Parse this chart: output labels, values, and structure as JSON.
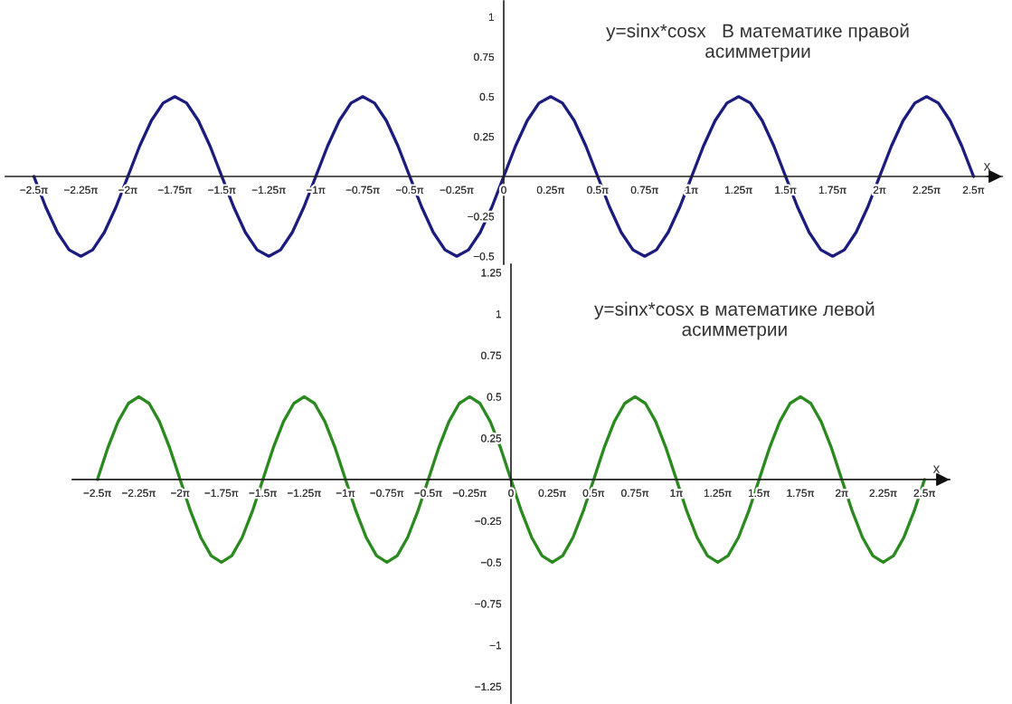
{
  "chart_data": [
    {
      "type": "line",
      "title": "y=sinx*cosx   В математике правой\nасимметрии",
      "xlabel": "x",
      "x": [
        -7.854,
        -7.658,
        -7.461,
        -7.265,
        -7.069,
        -6.872,
        -6.676,
        -6.48,
        -6.283,
        -6.087,
        -5.89,
        -5.694,
        -5.498,
        -5.301,
        -5.105,
        -4.909,
        -4.712,
        -4.516,
        -4.32,
        -4.123,
        -3.927,
        -3.731,
        -3.534,
        -3.338,
        -3.142,
        -2.945,
        -2.749,
        -2.553,
        -2.356,
        -2.16,
        -1.963,
        -1.767,
        -1.571,
        -1.374,
        -1.178,
        -0.982,
        -0.785,
        -0.589,
        -0.393,
        -0.196,
        0,
        0.196,
        0.393,
        0.589,
        0.785,
        0.982,
        1.178,
        1.374,
        1.571,
        1.767,
        1.963,
        2.16,
        2.356,
        2.553,
        2.749,
        2.945,
        3.142,
        3.338,
        3.534,
        3.731,
        3.927,
        4.123,
        4.32,
        4.516,
        4.712,
        4.909,
        5.105,
        5.301,
        5.498,
        5.694,
        5.89,
        6.087,
        6.283,
        6.48,
        6.676,
        6.872,
        7.069,
        7.265,
        7.461,
        7.658,
        7.854
      ],
      "series": [
        {
          "color": "#1c1c7e",
          "values": [
            0,
            -0.19,
            -0.35,
            -0.46,
            -0.5,
            -0.46,
            -0.35,
            -0.19,
            0,
            0.19,
            0.35,
            0.46,
            0.5,
            0.46,
            0.35,
            0.19,
            0,
            -0.19,
            -0.35,
            -0.46,
            -0.5,
            -0.46,
            -0.35,
            -0.19,
            0,
            0.19,
            0.35,
            0.46,
            0.5,
            0.46,
            0.35,
            0.19,
            0,
            -0.19,
            -0.35,
            -0.46,
            -0.5,
            -0.46,
            -0.35,
            -0.19,
            0,
            0.19,
            0.35,
            0.46,
            0.5,
            0.46,
            0.35,
            0.19,
            0,
            -0.19,
            -0.35,
            -0.46,
            -0.5,
            -0.46,
            -0.35,
            -0.19,
            0,
            0.19,
            0.35,
            0.46,
            0.5,
            0.46,
            0.35,
            0.19,
            0,
            -0.19,
            -0.35,
            -0.46,
            -0.5,
            -0.46,
            -0.35,
            -0.19,
            0,
            0.19,
            0.35,
            0.46,
            0.5,
            0.46,
            0.35,
            0.19,
            0
          ]
        }
      ],
      "xlim": [
        -8.33,
        8.33
      ],
      "ylim": [
        -0.55,
        1.1
      ],
      "xticks": [
        {
          "value": -7.854,
          "label": "−2.5π"
        },
        {
          "value": -7.069,
          "label": "−2.25π"
        },
        {
          "value": -6.283,
          "label": "−2π"
        },
        {
          "value": -5.498,
          "label": "−1.75π"
        },
        {
          "value": -4.712,
          "label": "−1.5π"
        },
        {
          "value": -3.927,
          "label": "−1.25π"
        },
        {
          "value": -3.142,
          "label": "−1π"
        },
        {
          "value": -2.356,
          "label": "−0.75π"
        },
        {
          "value": -1.571,
          "label": "−0.5π"
        },
        {
          "value": -0.785,
          "label": "−0.25π"
        },
        0,
        {
          "value": 0.785,
          "label": "0.25π"
        },
        {
          "value": 1.571,
          "label": "0.5π"
        },
        {
          "value": 2.356,
          "label": "0.75π"
        },
        {
          "value": 3.142,
          "label": "1π"
        },
        {
          "value": 3.927,
          "label": "1.25π"
        },
        {
          "value": 4.712,
          "label": "1.5π"
        },
        {
          "value": 5.498,
          "label": "1.75π"
        },
        {
          "value": 6.283,
          "label": "2π"
        },
        {
          "value": 7.069,
          "label": "2.25π"
        },
        {
          "value": 7.854,
          "label": "2.5π"
        }
      ],
      "yticks": [
        1,
        0.75,
        0.5,
        0.25,
        {
          "value": -0.25,
          "label": "−0.25"
        },
        {
          "value": -0.5,
          "label": "−0.5"
        }
      ]
    },
    {
      "type": "line",
      "title": "y=sinx*cosx в математике левой\nасимметрии",
      "xlabel": "x",
      "x": [
        -7.854,
        -7.658,
        -7.461,
        -7.265,
        -7.069,
        -6.872,
        -6.676,
        -6.48,
        -6.283,
        -6.087,
        -5.89,
        -5.694,
        -5.498,
        -5.301,
        -5.105,
        -4.909,
        -4.712,
        -4.516,
        -4.32,
        -4.123,
        -3.927,
        -3.731,
        -3.534,
        -3.338,
        -3.142,
        -2.945,
        -2.749,
        -2.553,
        -2.356,
        -2.16,
        -1.963,
        -1.767,
        -1.571,
        -1.374,
        -1.178,
        -0.982,
        -0.785,
        -0.589,
        -0.393,
        -0.196,
        0,
        0.196,
        0.393,
        0.589,
        0.785,
        0.982,
        1.178,
        1.374,
        1.571,
        1.767,
        1.963,
        2.16,
        2.356,
        2.553,
        2.749,
        2.945,
        3.142,
        3.338,
        3.534,
        3.731,
        3.927,
        4.123,
        4.32,
        4.516,
        4.712,
        4.909,
        5.105,
        5.301,
        5.498,
        5.694,
        5.89,
        6.087,
        6.283,
        6.48,
        6.676,
        6.872,
        7.069,
        7.265,
        7.461,
        7.658,
        7.854
      ],
      "series": [
        {
          "color": "#2b8a1f",
          "values": [
            0,
            0.19,
            0.35,
            0.46,
            0.5,
            0.46,
            0.35,
            0.19,
            0,
            -0.19,
            -0.35,
            -0.46,
            -0.5,
            -0.46,
            -0.35,
            -0.19,
            0,
            0.19,
            0.35,
            0.46,
            0.5,
            0.46,
            0.35,
            0.19,
            0,
            -0.19,
            -0.35,
            -0.46,
            -0.5,
            -0.46,
            -0.35,
            -0.19,
            0,
            0.19,
            0.35,
            0.46,
            0.5,
            0.46,
            0.35,
            0.19,
            0,
            -0.19,
            -0.35,
            -0.46,
            -0.5,
            -0.46,
            -0.35,
            -0.19,
            0,
            0.19,
            0.35,
            0.46,
            0.5,
            0.46,
            0.35,
            0.19,
            0,
            -0.19,
            -0.35,
            -0.46,
            -0.5,
            -0.46,
            -0.35,
            -0.19,
            0,
            0.19,
            0.35,
            0.46,
            0.5,
            0.46,
            0.35,
            0.19,
            0,
            -0.19,
            -0.35,
            -0.46,
            -0.5,
            -0.46,
            -0.35,
            -0.19,
            0
          ]
        }
      ],
      "xlim": [
        -8.33,
        8.33
      ],
      "ylim": [
        -1.35,
        1.3
      ],
      "xticks": [
        {
          "value": -7.854,
          "label": "−2.5π"
        },
        {
          "value": -7.069,
          "label": "−2.25π"
        },
        {
          "value": -6.283,
          "label": "−2π"
        },
        {
          "value": -5.498,
          "label": "−1.75π"
        },
        {
          "value": -4.712,
          "label": "−1.5π"
        },
        {
          "value": -3.927,
          "label": "−1.25π"
        },
        {
          "value": -3.142,
          "label": "−1π"
        },
        {
          "value": -2.356,
          "label": "−0.75π"
        },
        {
          "value": -1.571,
          "label": "−0.5π"
        },
        {
          "value": -0.785,
          "label": "−0.25π"
        },
        0,
        {
          "value": 0.785,
          "label": "0.25π"
        },
        {
          "value": 1.571,
          "label": "0.5π"
        },
        {
          "value": 2.356,
          "label": "0.75π"
        },
        {
          "value": 3.142,
          "label": "1π"
        },
        {
          "value": 3.927,
          "label": "1.25π"
        },
        {
          "value": 4.712,
          "label": "1.5π"
        },
        {
          "value": 5.498,
          "label": "1.75π"
        },
        {
          "value": 6.283,
          "label": "2π"
        },
        {
          "value": 7.069,
          "label": "2.25π"
        },
        {
          "value": 7.854,
          "label": "2.5π"
        }
      ],
      "yticks": [
        1.25,
        1,
        0.75,
        0.5,
        0.25,
        {
          "value": -0.25,
          "label": "−0.25"
        },
        {
          "value": -0.5,
          "label": "−0.5"
        },
        {
          "value": -0.75,
          "label": "−0.75"
        },
        {
          "value": -1,
          "label": "−1"
        },
        {
          "value": -1.25,
          "label": "−1.25"
        }
      ]
    }
  ]
}
